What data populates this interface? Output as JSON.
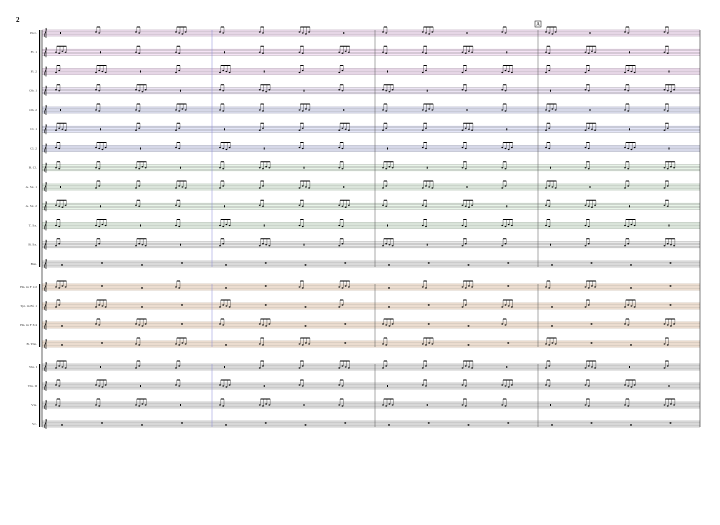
{
  "page_number": "2",
  "rehearsal_mark": "A",
  "staves": [
    {
      "label": "Picc."
    },
    {
      "label": "Fl. 1"
    },
    {
      "label": "Fl. 2"
    },
    {
      "label": "Ob. 1"
    },
    {
      "label": "Ob. 2"
    },
    {
      "label": "Cl. 1"
    },
    {
      "label": "Cl. 2"
    },
    {
      "label": "B. Cl."
    },
    {
      "label": "A. Sx. 1"
    },
    {
      "label": "A. Sx. 2"
    },
    {
      "label": "T. Sx."
    },
    {
      "label": "B. Sx."
    },
    {
      "label": "Bsn."
    },
    {
      "label": "Hn. in F 1/2"
    },
    {
      "label": "Tpt. in B♭ 1"
    },
    {
      "label": "Hn. in F 3/4"
    },
    {
      "label": "B. Tbn."
    },
    {
      "label": "Vln. I"
    },
    {
      "label": "Vln. II"
    },
    {
      "label": "Vla."
    },
    {
      "label": "Vc."
    }
  ]
}
